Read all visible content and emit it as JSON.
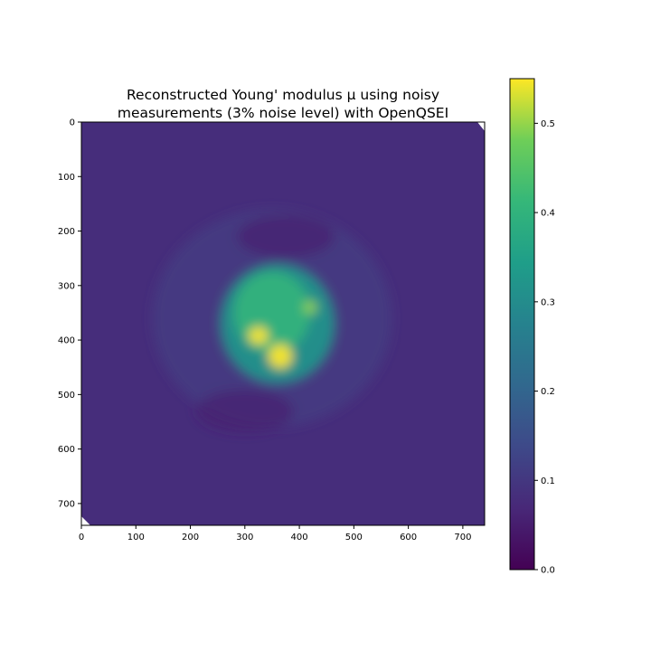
{
  "chart_data": {
    "type": "heatmap",
    "title_line1": "Reconstructed Young' modulus μ using noisy",
    "title_line2": "measurements (3% noise level) with OpenQSEI",
    "xlabel": "",
    "ylabel": "",
    "colormap": "viridis",
    "xlim": [
      0,
      740
    ],
    "ylim": [
      740,
      0
    ],
    "x_ticks": [
      0,
      100,
      200,
      300,
      400,
      500,
      600,
      700
    ],
    "y_ticks": [
      0,
      100,
      200,
      300,
      400,
      500,
      600,
      700
    ],
    "colorbar": {
      "range": [
        0.0,
        0.55
      ],
      "ticks": [
        "0.0",
        "0.1",
        "0.2",
        "0.3",
        "0.4",
        "0.5"
      ]
    },
    "background_value": 0.08,
    "features": [
      {
        "kind": "blob",
        "center": [
          360,
          370
        ],
        "radius": [
          105,
          110
        ],
        "value": 0.32
      },
      {
        "kind": "blob",
        "center": [
          350,
          350
        ],
        "radius": [
          70,
          75
        ],
        "value": 0.4
      },
      {
        "kind": "peak",
        "center": [
          325,
          392
        ],
        "radius": [
          18,
          16
        ],
        "value": 0.55
      },
      {
        "kind": "peak",
        "center": [
          365,
          430
        ],
        "radius": [
          22,
          22
        ],
        "value": 0.55
      },
      {
        "kind": "peak",
        "center": [
          420,
          340
        ],
        "radius": [
          12,
          12
        ],
        "value": 0.5
      },
      {
        "kind": "dip",
        "center": [
          375,
          210
        ],
        "radius": [
          90,
          40
        ],
        "value": 0.05
      },
      {
        "kind": "dip",
        "center": [
          300,
          530
        ],
        "radius": [
          90,
          40
        ],
        "value": 0.05
      },
      {
        "kind": "halo",
        "center": [
          350,
          360
        ],
        "radius": [
          220,
          200
        ],
        "value": 0.12
      }
    ]
  }
}
